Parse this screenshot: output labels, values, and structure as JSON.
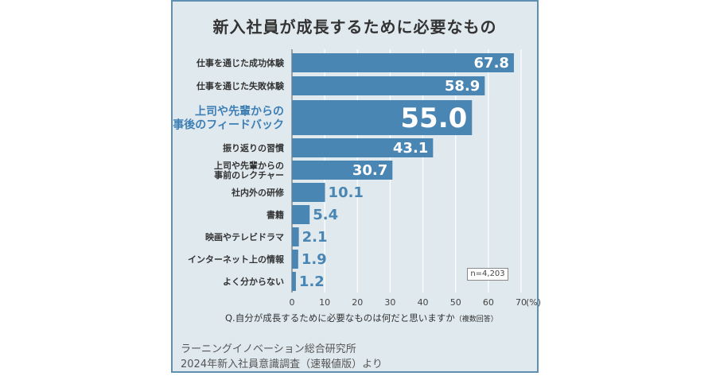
{
  "chart_data": {
    "type": "bar",
    "title": "新入社員が成長するために必要なもの",
    "categories": [
      "仕事を通じた成功体験",
      "仕事を通じた失敗体験",
      "上司や先輩からの\n事後のフィードバック",
      "振り返りの習慣",
      "上司や先輩からの\n事前のレクチャー",
      "社内外の研修",
      "書籍",
      "映画やテレビドラマ",
      "インターネット上の情報",
      "よく分からない"
    ],
    "values": [
      67.8,
      58.9,
      55.0,
      43.1,
      30.7,
      10.1,
      5.4,
      2.1,
      1.9,
      1.2
    ],
    "value_labels": [
      "67.8",
      "58.9",
      "55.0",
      "43.1",
      "30.7",
      "10.1",
      "5.4",
      "2.1",
      "1.9",
      "1.2"
    ],
    "highlight_index": 2,
    "xlim": [
      0,
      70
    ],
    "xticks": [
      "0",
      "10",
      "20",
      "30",
      "40",
      "50",
      "60",
      "70"
    ],
    "xunit": "(%)",
    "grid": true,
    "bar_color": "#4a86b3",
    "highlight_label_color": "#3d7fb5",
    "label_color": "#333333"
  },
  "sample_size": "n=4,203",
  "question_main": "Q.自分が成長するために必要なものは何だと思いますか",
  "question_note": "（複数回答）",
  "source_line1": "ラーニングイノベーション総合研究所",
  "source_line2": "2024年新入社員意識調査（速報値版）より",
  "colors": {
    "card_bg": "#dfe9ee",
    "frame": "#5f90b2"
  }
}
